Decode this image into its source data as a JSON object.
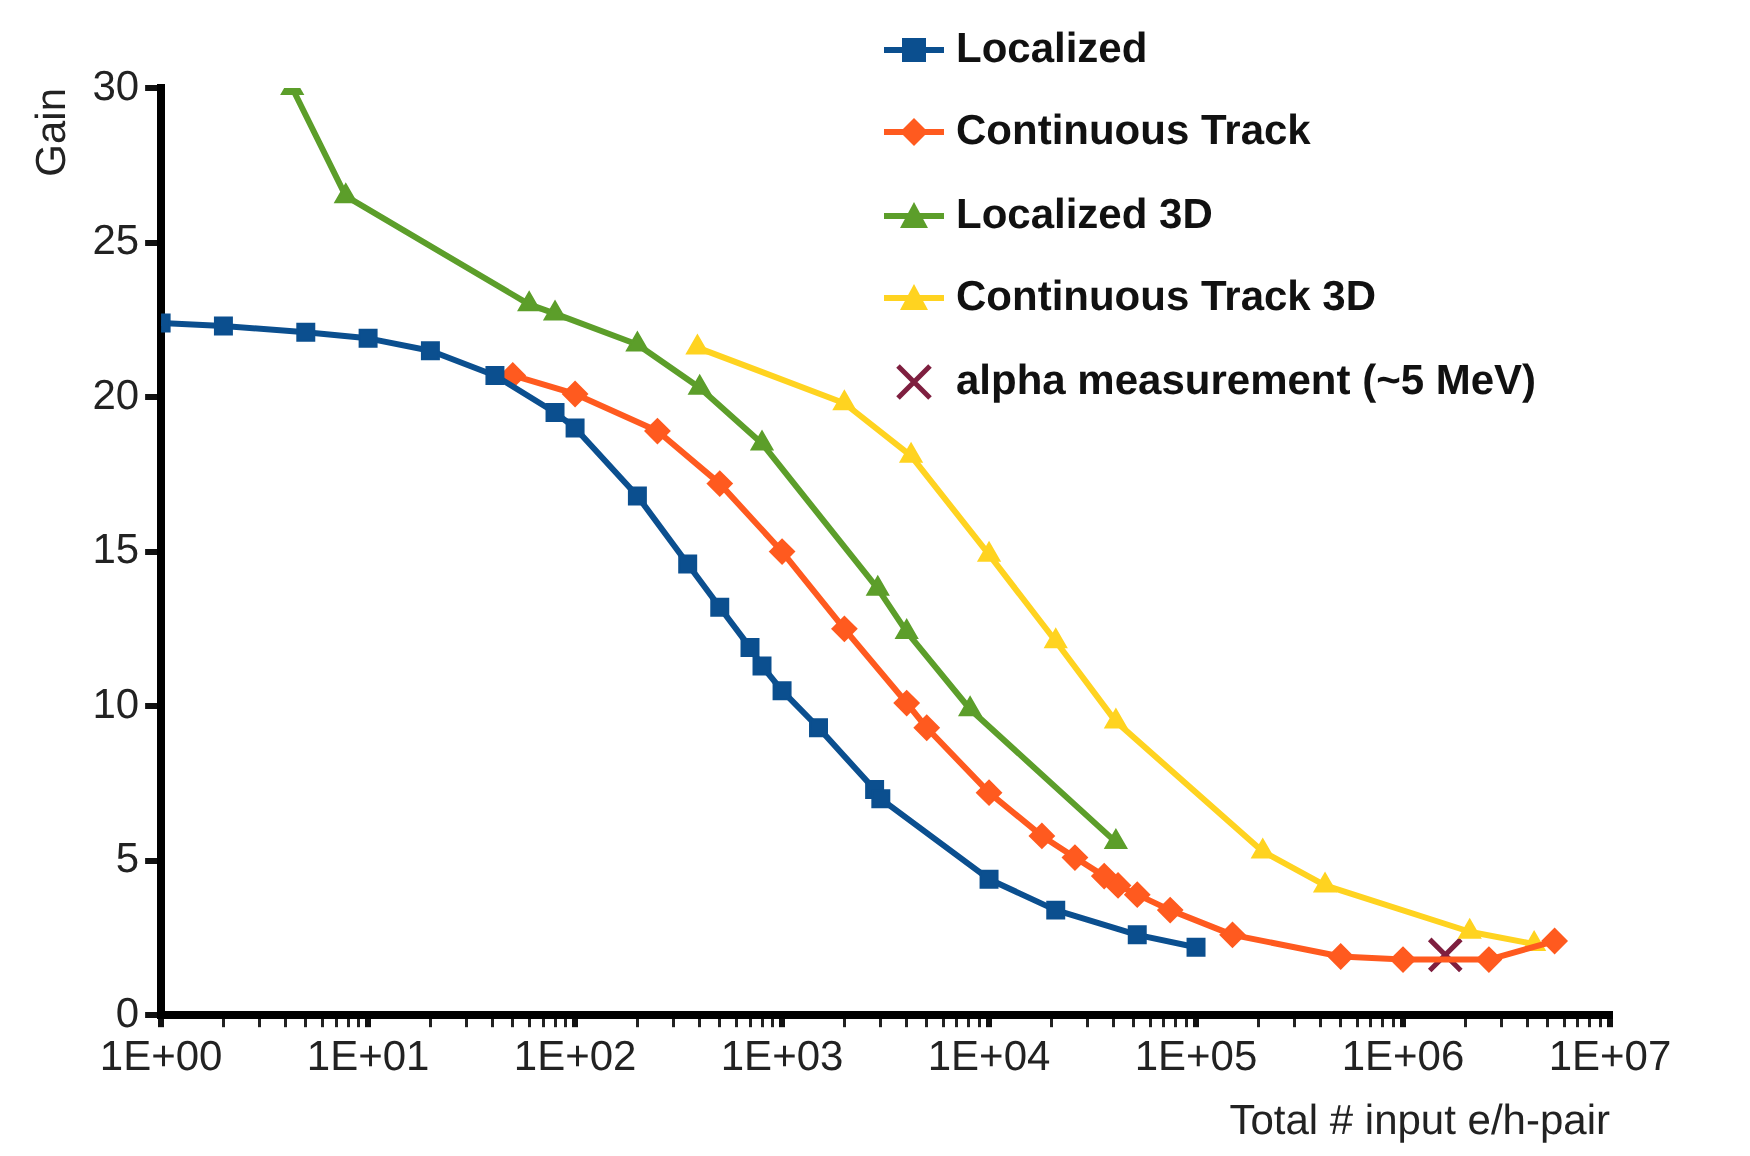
{
  "chart_data": {
    "type": "line",
    "xlabel": "Total # input e/h-pair",
    "ylabel": "Gain",
    "log": "x",
    "xlim": [
      1,
      10000000
    ],
    "ylim": [
      0,
      30
    ],
    "xticks": [
      {
        "value": 1,
        "label": "1E+00"
      },
      {
        "value": 2,
        "label": null
      },
      {
        "value": 3,
        "label": null
      },
      {
        "value": 4,
        "label": null
      },
      {
        "value": 5,
        "label": null
      },
      {
        "value": 6,
        "label": null
      },
      {
        "value": 7,
        "label": null
      },
      {
        "value": 8,
        "label": null
      },
      {
        "value": 9,
        "label": null
      },
      {
        "value": 10,
        "label": "1E+01"
      },
      {
        "value": 20,
        "label": null
      },
      {
        "value": 30,
        "label": null
      },
      {
        "value": 40,
        "label": null
      },
      {
        "value": 50,
        "label": null
      },
      {
        "value": 60,
        "label": null
      },
      {
        "value": 70,
        "label": null
      },
      {
        "value": 80,
        "label": null
      },
      {
        "value": 90,
        "label": null
      },
      {
        "value": 100,
        "label": "1E+02"
      },
      {
        "value": 200,
        "label": null
      },
      {
        "value": 300,
        "label": null
      },
      {
        "value": 400,
        "label": null
      },
      {
        "value": 500,
        "label": null
      },
      {
        "value": 600,
        "label": null
      },
      {
        "value": 700,
        "label": null
      },
      {
        "value": 800,
        "label": null
      },
      {
        "value": 900,
        "label": null
      },
      {
        "value": 1000,
        "label": "1E+03"
      },
      {
        "value": 2000,
        "label": null
      },
      {
        "value": 3000,
        "label": null
      },
      {
        "value": 4000,
        "label": null
      },
      {
        "value": 5000,
        "label": null
      },
      {
        "value": 6000,
        "label": null
      },
      {
        "value": 7000,
        "label": null
      },
      {
        "value": 8000,
        "label": null
      },
      {
        "value": 9000,
        "label": null
      },
      {
        "value": 10000,
        "label": "1E+04"
      },
      {
        "value": 20000,
        "label": null
      },
      {
        "value": 30000,
        "label": null
      },
      {
        "value": 40000,
        "label": null
      },
      {
        "value": 50000,
        "label": null
      },
      {
        "value": 60000,
        "label": null
      },
      {
        "value": 70000,
        "label": null
      },
      {
        "value": 80000,
        "label": null
      },
      {
        "value": 90000,
        "label": null
      },
      {
        "value": 100000,
        "label": "1E+05"
      },
      {
        "value": 200000,
        "label": null
      },
      {
        "value": 300000,
        "label": null
      },
      {
        "value": 400000,
        "label": null
      },
      {
        "value": 500000,
        "label": null
      },
      {
        "value": 600000,
        "label": null
      },
      {
        "value": 700000,
        "label": null
      },
      {
        "value": 800000,
        "label": null
      },
      {
        "value": 900000,
        "label": null
      },
      {
        "value": 1000000,
        "label": "1E+06"
      },
      {
        "value": 2000000,
        "label": null
      },
      {
        "value": 3000000,
        "label": null
      },
      {
        "value": 4000000,
        "label": null
      },
      {
        "value": 5000000,
        "label": null
      },
      {
        "value": 6000000,
        "label": null
      },
      {
        "value": 7000000,
        "label": null
      },
      {
        "value": 8000000,
        "label": null
      },
      {
        "value": 9000000,
        "label": null
      },
      {
        "value": 10000000,
        "label": "1E+07"
      }
    ],
    "yticks": [
      0,
      5,
      10,
      15,
      20,
      25,
      30
    ],
    "grid": false,
    "legend": "top right",
    "line_style": "solid",
    "series": [
      {
        "name": "Localized",
        "color": "#0b4f8f",
        "marker": "square",
        "x": [
          1,
          2,
          5,
          10,
          20,
          41,
          80,
          100,
          200,
          350,
          500,
          700,
          800,
          1000,
          1500,
          2800,
          3000,
          10000,
          21000,
          52000,
          100000
        ],
        "values": [
          22.4,
          22.3,
          22.1,
          21.9,
          21.5,
          20.7,
          19.5,
          19.0,
          16.8,
          14.6,
          13.2,
          11.9,
          11.3,
          10.5,
          9.3,
          7.3,
          7.0,
          4.4,
          3.4,
          2.6,
          2.2
        ]
      },
      {
        "name": "Continuous Track",
        "color": "#ff5a1f",
        "marker": "diamond",
        "x": [
          50,
          100,
          250,
          500,
          1000,
          2000,
          4000,
          5000,
          10000,
          18000,
          26000,
          36000,
          42000,
          52000,
          75000,
          150000,
          500000,
          1000000,
          2600000,
          5400000
        ],
        "values": [
          20.7,
          20.1,
          18.9,
          17.2,
          15.0,
          12.5,
          10.1,
          9.3,
          7.2,
          5.8,
          5.1,
          4.5,
          4.2,
          3.9,
          3.4,
          2.6,
          1.9,
          1.8,
          1.8,
          2.4
        ]
      },
      {
        "name": "Localized 3D",
        "color": "#5c9e2a",
        "marker": "triangle",
        "x": [
          4.3,
          7.8,
          60,
          80,
          200,
          400,
          800,
          2900,
          4000,
          8100,
          41000
        ],
        "values": [
          30,
          26.5,
          23.0,
          22.7,
          21.7,
          20.3,
          18.5,
          13.8,
          12.4,
          9.9,
          5.6
        ]
      },
      {
        "name": "Continuous Track 3D",
        "color": "#ffd320",
        "marker": "triangle",
        "x": [
          390,
          2000,
          4200,
          10000,
          21000,
          41000,
          210000,
          420000,
          2100000,
          4300000
        ],
        "values": [
          21.6,
          19.8,
          18.1,
          14.9,
          12.1,
          9.5,
          5.3,
          4.2,
          2.7,
          2.3
        ]
      },
      {
        "name": "alpha measurement (~5 MeV)",
        "type": "scatter",
        "color": "#7e1f3f",
        "marker": "cross",
        "x": [
          1600000
        ],
        "values": [
          1.95
        ]
      }
    ]
  }
}
